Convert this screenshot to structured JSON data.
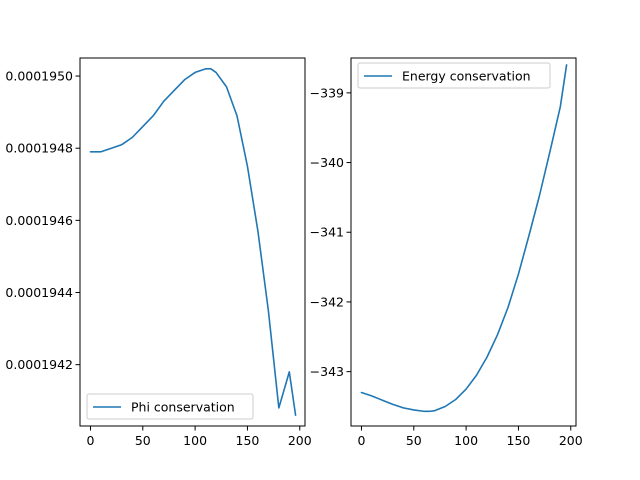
{
  "chart_data": [
    {
      "type": "line",
      "title": "",
      "xlabel": "",
      "ylabel": "",
      "xlim": [
        -10,
        205
      ],
      "ylim": [
        0.00019403,
        0.00019505
      ],
      "xticks": [
        0,
        50,
        100,
        150,
        200
      ],
      "yticks": [
        0.0001942,
        0.0001944,
        0.0001946,
        0.0001948,
        0.000195
      ],
      "ytick_labels": [
        "0.0001942",
        "0.0001944",
        "0.0001946",
        "0.0001948",
        "0.0001950"
      ],
      "grid": false,
      "legend_position": "lower left",
      "series": [
        {
          "name": "Phi conservation",
          "color": "#1f77b4",
          "x": [
            0,
            10,
            20,
            30,
            40,
            50,
            60,
            70,
            80,
            90,
            100,
            110,
            115,
            120,
            130,
            140,
            150,
            160,
            170,
            180,
            190,
            196
          ],
          "y": [
            0.00019479,
            0.00019479,
            0.0001948,
            0.00019481,
            0.00019483,
            0.00019486,
            0.00019489,
            0.00019493,
            0.00019496,
            0.00019499,
            0.00019501,
            0.00019502,
            0.00019502,
            0.00019501,
            0.00019497,
            0.00019489,
            0.00019475,
            0.00019457,
            0.00019435,
            0.00019408,
            0.00019418,
            0.00019406
          ]
        }
      ]
    },
    {
      "type": "line",
      "title": "",
      "xlabel": "",
      "ylabel": "",
      "xlim": [
        -10,
        205
      ],
      "ylim": [
        -343.78,
        -338.5
      ],
      "xticks": [
        0,
        50,
        100,
        150,
        200
      ],
      "yticks": [
        -343,
        -342,
        -341,
        -340,
        -339
      ],
      "ytick_labels": [
        "−343",
        "−342",
        "−341",
        "−340",
        "−339"
      ],
      "grid": false,
      "legend_position": "upper left",
      "series": [
        {
          "name": "Energy conservation",
          "color": "#1f77b4",
          "x": [
            0,
            10,
            20,
            30,
            40,
            50,
            60,
            65,
            70,
            80,
            90,
            100,
            110,
            120,
            130,
            140,
            150,
            160,
            170,
            180,
            190,
            196
          ],
          "y": [
            -343.3,
            -343.35,
            -343.41,
            -343.47,
            -343.52,
            -343.55,
            -343.57,
            -343.57,
            -343.56,
            -343.5,
            -343.4,
            -343.25,
            -343.05,
            -342.79,
            -342.47,
            -342.08,
            -341.6,
            -341.05,
            -340.48,
            -339.85,
            -339.2,
            -338.6
          ]
        }
      ]
    }
  ]
}
